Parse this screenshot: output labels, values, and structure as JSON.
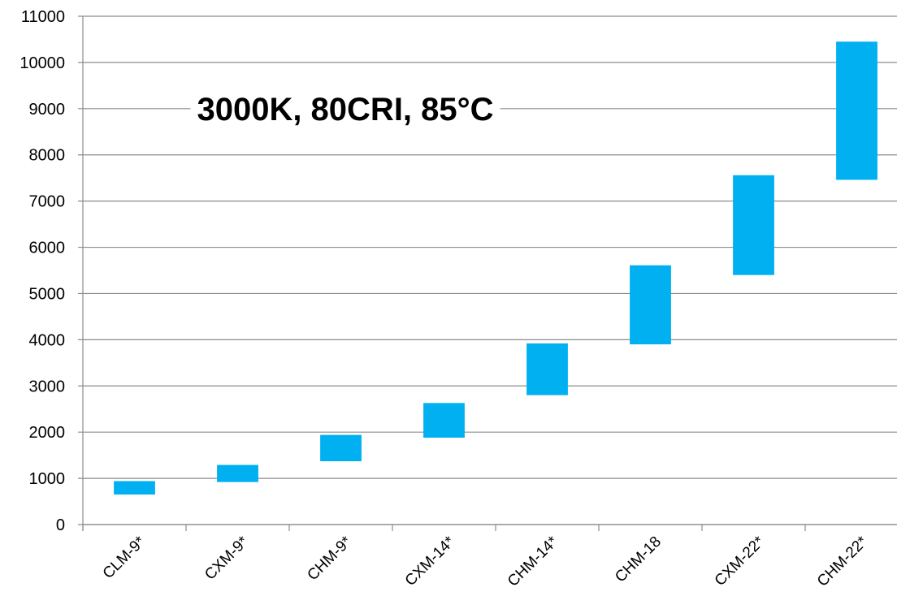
{
  "chart_data": {
    "type": "bar",
    "title": "3000K, 80CRI, 85°C",
    "xlabel": "",
    "ylabel": "",
    "ylim": [
      0,
      11000
    ],
    "yticks": [
      0,
      1000,
      2000,
      3000,
      4000,
      5000,
      6000,
      7000,
      8000,
      9000,
      10000,
      11000
    ],
    "grid": true,
    "legend": "none",
    "bar_style": "floating range (min to max)",
    "color": "#00b0f0",
    "categories": [
      "CLM-9*",
      "CXM-9*",
      "CHM-9*",
      "CXM-14*",
      "CHM-14*",
      "CHM-18",
      "CXM-22*",
      "CHM-22*"
    ],
    "series": [
      {
        "low": [
          650,
          920,
          1370,
          1880,
          2800,
          3900,
          5400,
          7460
        ],
        "high": [
          940,
          1290,
          1940,
          2630,
          3920,
          5610,
          7560,
          10450
        ]
      }
    ]
  }
}
